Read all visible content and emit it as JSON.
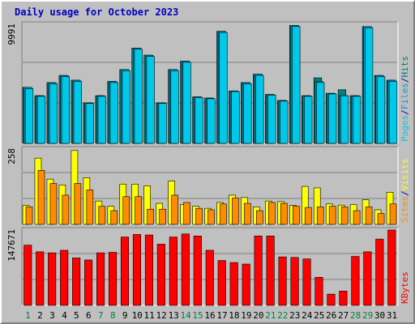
{
  "colors": {
    "pages": "#00c8e8",
    "files": "#00a0d0",
    "hits": "#008080",
    "visits": "#ffff00",
    "sites": "#ff8c00",
    "kbytes": "#ff0000",
    "title": "#0000c0",
    "weekday_label": "#000000",
    "weekend_label": "#008040"
  },
  "chart_data": {
    "type": "bar",
    "title": "Daily usage for October 2023",
    "categories": [
      "1",
      "2",
      "3",
      "4",
      "5",
      "6",
      "7",
      "8",
      "9",
      "10",
      "11",
      "12",
      "13",
      "14",
      "15",
      "16",
      "17",
      "18",
      "19",
      "20",
      "21",
      "22",
      "23",
      "24",
      "25",
      "26",
      "27",
      "28",
      "29",
      "30",
      "31"
    ],
    "weekend_days": [
      "1",
      "7",
      "8",
      "14",
      "15",
      "21",
      "22",
      "28",
      "29"
    ],
    "panels": [
      {
        "name": "hits-files-pages",
        "scale_max_label": "9991",
        "ylim": [
          0,
          9991
        ],
        "legend": [
          "Pages",
          "/",
          "Files",
          "/",
          "Hits"
        ],
        "legend_colors": [
          "pages",
          "title",
          "files",
          "title",
          "hits"
        ],
        "series": [
          {
            "name": "Hits",
            "values": [
              4700,
              4000,
              5100,
              5700,
              5300,
              3400,
              4000,
              5200,
              6200,
              8000,
              7400,
              3400,
              6200,
              6900,
              3900,
              3800,
              9400,
              4400,
              5100,
              5800,
              4100,
              3600,
              9900,
              4000,
              5500,
              4200,
              4500,
              4000,
              9800,
              5700,
              5300
            ]
          },
          {
            "name": "Files",
            "values": [
              4700,
              4000,
              5100,
              5700,
              5300,
              3400,
              4000,
              5200,
              6200,
              8000,
              7400,
              3400,
              6200,
              6900,
              3900,
              3800,
              9400,
              4400,
              5100,
              5800,
              4100,
              3600,
              9900,
              4000,
              5200,
              4200,
              4000,
              4000,
              9800,
              5700,
              5300
            ]
          },
          {
            "name": "Pages",
            "values": [
              4600,
              3950,
              5000,
              5600,
              5200,
              3350,
              3950,
              5100,
              6100,
              7900,
              7300,
              3350,
              6100,
              6800,
              3850,
              3750,
              9300,
              4350,
              5000,
              5700,
              4050,
              3550,
              9800,
              3950,
              5100,
              4150,
              4000,
              3950,
              9700,
              5600,
              5200
            ]
          }
        ]
      },
      {
        "name": "visits-sites",
        "scale_max_label": "258",
        "ylim": [
          0,
          258
        ],
        "legend": [
          "Sites",
          "/",
          "Visits"
        ],
        "legend_colors": [
          "sites",
          "title",
          "visits"
        ],
        "series": [
          {
            "name": "Visits",
            "values": [
              65,
              227,
              155,
              135,
              253,
              160,
              80,
              62,
              138,
              138,
              132,
              72,
              148,
              68,
              62,
              55,
              75,
              100,
              92,
              60,
              80,
              78,
              65,
              130,
              125,
              70,
              66,
              68,
              84,
              50,
              110
            ]
          },
          {
            "name": "Sites",
            "values": [
              60,
              185,
              140,
              100,
              140,
              118,
              62,
              47,
              95,
              95,
              52,
              52,
              100,
              75,
              55,
              50,
              70,
              90,
              72,
              47,
              75,
              72,
              62,
              58,
              60,
              62,
              60,
              47,
              60,
              37,
              70
            ]
          }
        ]
      },
      {
        "name": "kbytes",
        "scale_max_label": "147671",
        "ylim": [
          0,
          147671
        ],
        "legend": [
          "KBytes"
        ],
        "legend_colors": [
          "kbytes"
        ],
        "series": [
          {
            "name": "KBytes",
            "values": [
              118000,
              105000,
              103000,
              108000,
              93000,
              89000,
              103000,
              104000,
              134000,
              139000,
              138000,
              120000,
              134000,
              140000,
              136000,
              108000,
              88000,
              84000,
              81000,
              136000,
              136000,
              95000,
              94000,
              91000,
              55000,
              22000,
              28000,
              96000,
              105000,
              130000,
              147671
            ]
          }
        ]
      }
    ]
  }
}
